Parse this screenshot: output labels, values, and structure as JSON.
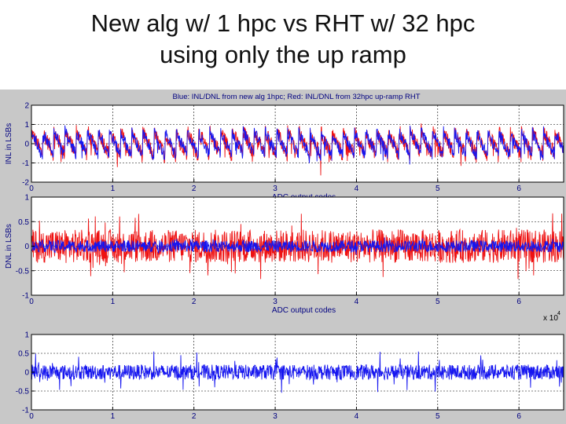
{
  "slide": {
    "title_line1": "New alg w/ 1 hpc vs RHT w/ 32 hpc",
    "title_line2": "using only the up ramp"
  },
  "colors": {
    "figure_bg": "#c8c8c8",
    "axes_bg": "#ffffff",
    "blue": "#1515f0",
    "red": "#ee1111"
  },
  "chart_data": [
    {
      "type": "line",
      "title": "Blue: INL/DNL from new alg 1hpc; Red: INL/DNL from 32hpc up-ramp RHT",
      "xlabel": "ADC output codes",
      "ylabel": "INL in LSBs",
      "x_exponent": "x 10",
      "x_exponent_power": "4",
      "xlim": [
        0,
        6.55
      ],
      "ylim": [
        -2,
        2
      ],
      "xticks": [
        "0",
        "1",
        "2",
        "3",
        "4",
        "5",
        "6"
      ],
      "yticks": [
        "-2",
        "-1",
        "0",
        "1",
        "2"
      ],
      "grid": true,
      "pattern": {
        "kind": "sawtooth",
        "period": 0.137,
        "base": -0.6,
        "amplitude": 1.35,
        "noise": 0.35
      },
      "series": [
        {
          "color": "#ee1111",
          "noise_scale": 1.15
        },
        {
          "color": "#1515f0",
          "noise_scale": 0.85
        }
      ]
    },
    {
      "type": "line",
      "xlabel": "ADC output codes",
      "ylabel": "DNL in LSBs",
      "x_exponent": "x 10",
      "x_exponent_power": "4",
      "xlim": [
        0,
        6.55
      ],
      "ylim": [
        -1,
        1
      ],
      "xticks": [
        "0",
        "1",
        "2",
        "3",
        "4",
        "5",
        "6"
      ],
      "yticks": [
        "-1",
        "-0.5",
        "0",
        "0.5",
        "1"
      ],
      "grid": true,
      "pattern": {
        "kind": "noise"
      },
      "series": [
        {
          "color": "#ee1111",
          "amplitude": 0.34,
          "spike": 0.7
        },
        {
          "color": "#1515f0",
          "amplitude": 0.12,
          "spike": 0.18
        }
      ]
    },
    {
      "type": "line",
      "xlim": [
        0,
        6.55
      ],
      "ylim": [
        -1,
        1
      ],
      "xticks": [
        "0",
        "1",
        "2",
        "3",
        "4",
        "5",
        "6"
      ],
      "yticks": [
        "-1",
        "-0.5",
        "0",
        "0.5",
        "1"
      ],
      "grid": true,
      "pattern": {
        "kind": "noise"
      },
      "series": [
        {
          "color": "#1515f0",
          "amplitude": 0.2,
          "spike": 0.55
        }
      ]
    }
  ]
}
